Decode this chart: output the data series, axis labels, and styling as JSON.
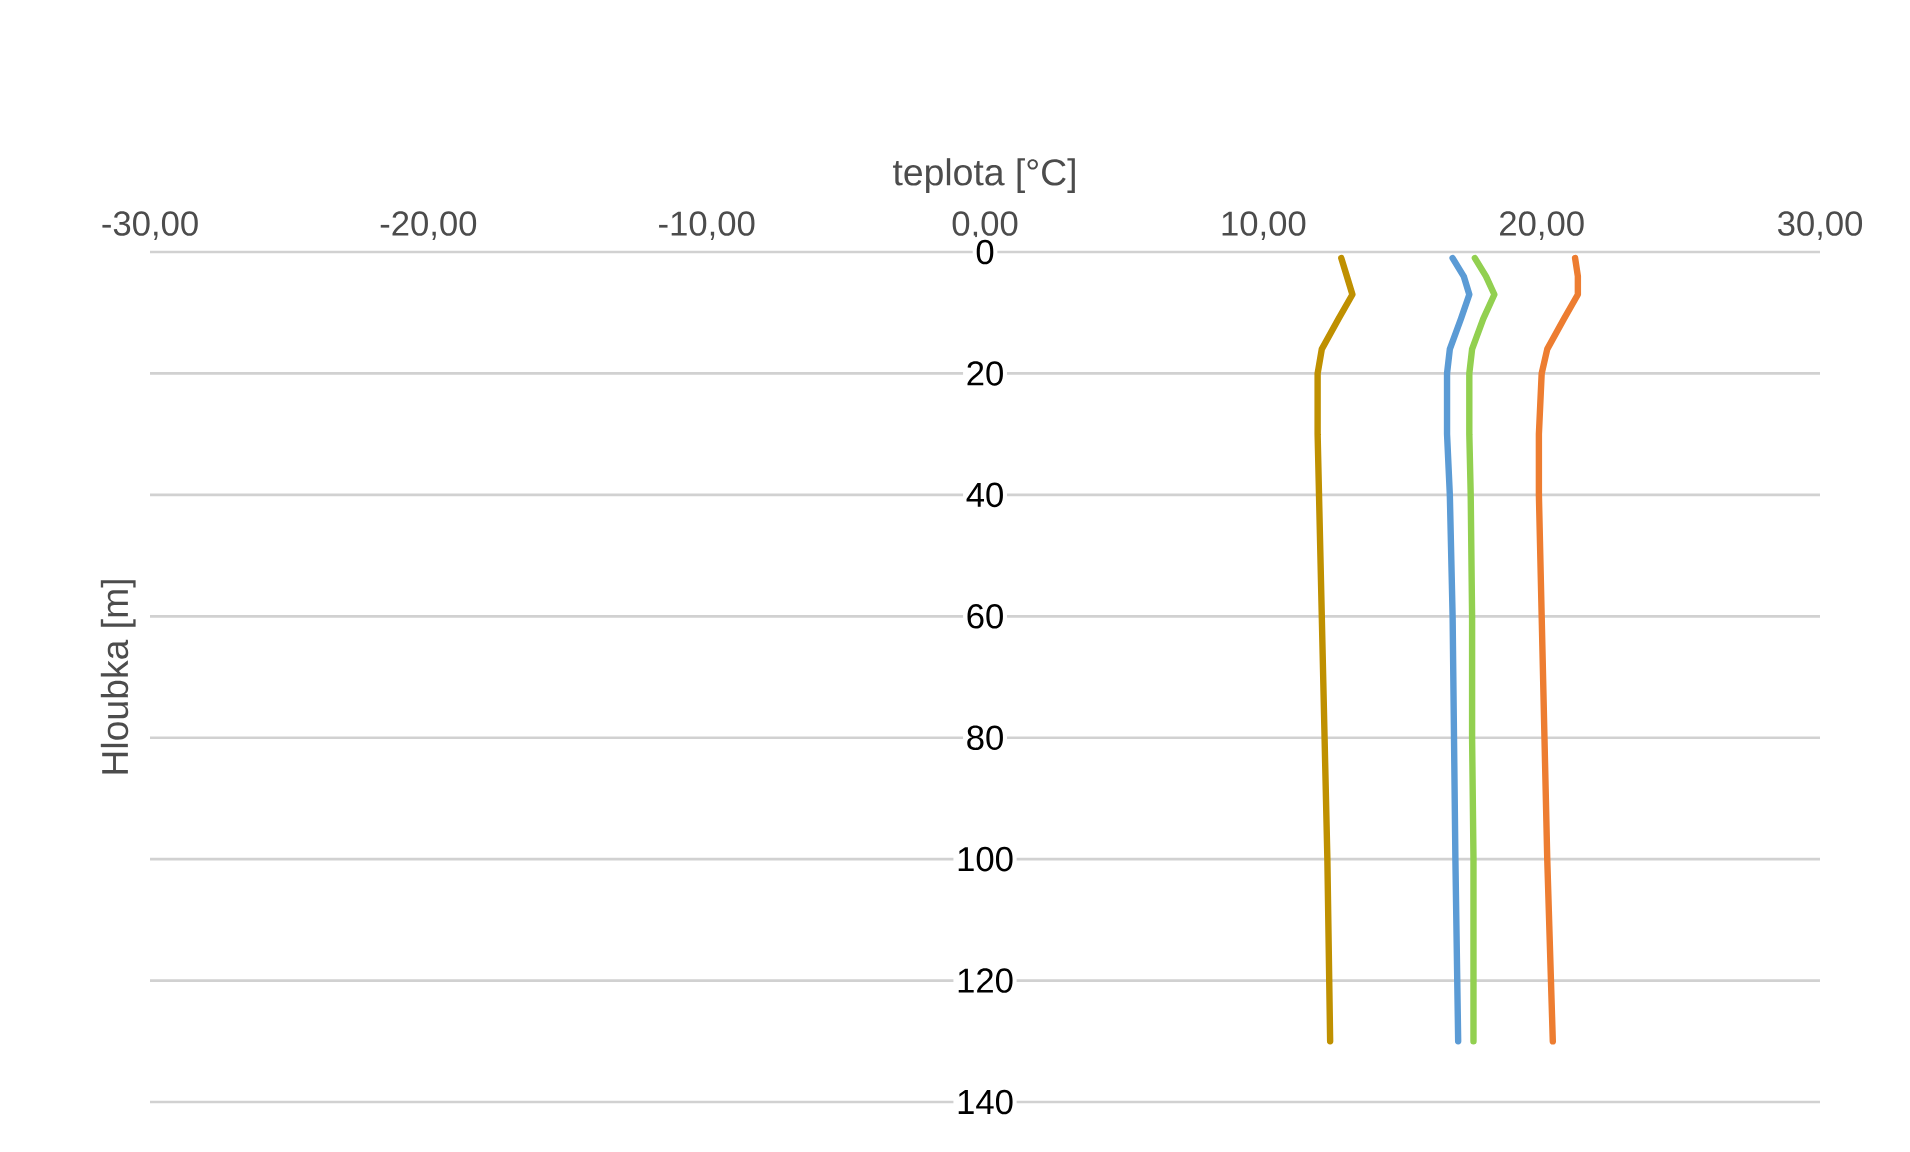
{
  "chart_data": {
    "type": "line",
    "xlabel": "teplota  [°C]",
    "ylabel": "Hloubka  [m]",
    "xlim": [
      -30,
      30
    ],
    "ylim": [
      140,
      0
    ],
    "xticks": [
      {
        "value": -30,
        "label": "-30,00"
      },
      {
        "value": -20,
        "label": "-20,00"
      },
      {
        "value": -10,
        "label": "-10,00"
      },
      {
        "value": 0,
        "label": "0,00"
      },
      {
        "value": 10,
        "label": "10,00"
      },
      {
        "value": 20,
        "label": "20,00"
      },
      {
        "value": 30,
        "label": "30,00"
      }
    ],
    "yticks": [
      0,
      20,
      40,
      60,
      80,
      100,
      120,
      140
    ],
    "grid": "y",
    "series": [
      {
        "color": "#bf9000",
        "x": [
          12.8,
          13.0,
          13.2,
          12.7,
          12.1,
          11.95,
          11.95,
          12.0,
          12.1,
          12.2,
          12.3,
          12.4
        ],
        "values": [
          1,
          4,
          7,
          11,
          16,
          20,
          30,
          40,
          60,
          80,
          100,
          130
        ]
      },
      {
        "color": "#5b9bd5",
        "x": [
          16.8,
          17.2,
          17.4,
          17.1,
          16.7,
          16.6,
          16.6,
          16.7,
          16.8,
          16.85,
          16.9,
          17.0
        ],
        "values": [
          1,
          4,
          7,
          11,
          16,
          20,
          30,
          40,
          60,
          80,
          100,
          130
        ]
      },
      {
        "color": "#92d050",
        "x": [
          17.6,
          18.0,
          18.3,
          17.9,
          17.5,
          17.4,
          17.4,
          17.45,
          17.5,
          17.5,
          17.55,
          17.55
        ],
        "values": [
          1,
          4,
          7,
          11,
          16,
          20,
          30,
          40,
          60,
          80,
          100,
          130
        ]
      },
      {
        "color": "#ed7d31",
        "x": [
          21.2,
          21.3,
          21.3,
          20.8,
          20.2,
          20.0,
          19.9,
          19.9,
          20.0,
          20.1,
          20.2,
          20.4
        ],
        "values": [
          1,
          4,
          7,
          11,
          16,
          20,
          30,
          40,
          60,
          80,
          100,
          130
        ]
      }
    ]
  }
}
